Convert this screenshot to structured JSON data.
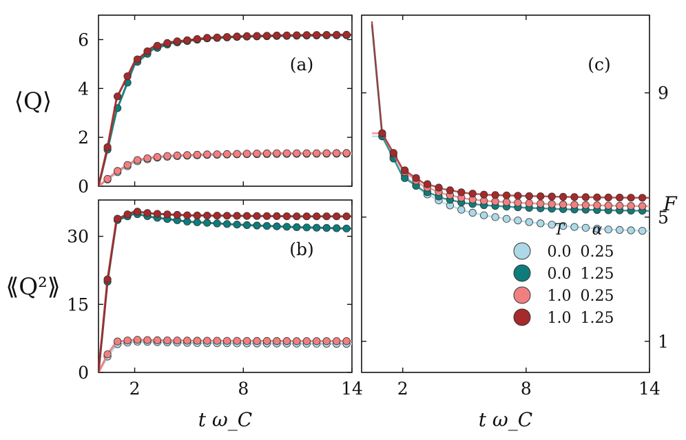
{
  "chart_data": [
    {
      "panel": "(a)",
      "type": "line",
      "ylabel": "⟨Q⟩",
      "xlabel": "",
      "xlim": [
        0,
        14
      ],
      "ylim": [
        0,
        7
      ],
      "xticks": [
        "2",
        "8",
        "14"
      ],
      "yticks": [
        "0",
        "2",
        "4",
        "6"
      ],
      "series": [
        {
          "name": "T=0.0 α=0.25",
          "color": "#add8e6",
          "points": [
            [
              0,
              0
            ],
            [
              1,
              0.55
            ],
            [
              2,
              1.0
            ],
            [
              3,
              1.15
            ],
            [
              4,
              1.22
            ],
            [
              6,
              1.28
            ],
            [
              8,
              1.31
            ],
            [
              10,
              1.32
            ],
            [
              12,
              1.33
            ],
            [
              14,
              1.33
            ]
          ]
        },
        {
          "name": "T=0.0 α=1.25",
          "color": "#0e7c7b",
          "points": [
            [
              0,
              0
            ],
            [
              0.5,
              1.5
            ],
            [
              1,
              3.1
            ],
            [
              2,
              5.0
            ],
            [
              3,
              5.6
            ],
            [
              4,
              5.85
            ],
            [
              6,
              6.05
            ],
            [
              8,
              6.12
            ],
            [
              10,
              6.15
            ],
            [
              12,
              6.17
            ],
            [
              14,
              6.18
            ]
          ]
        },
        {
          "name": "T=1.0 α=0.25",
          "color": "#f08080",
          "points": [
            [
              0,
              0
            ],
            [
              1,
              0.6
            ],
            [
              2,
              1.05
            ],
            [
              3,
              1.18
            ],
            [
              4,
              1.25
            ],
            [
              6,
              1.3
            ],
            [
              8,
              1.33
            ],
            [
              10,
              1.35
            ],
            [
              12,
              1.35
            ],
            [
              14,
              1.36
            ]
          ]
        },
        {
          "name": "T=1.0 α=1.25",
          "color": "#a52a2a",
          "points": [
            [
              0,
              0
            ],
            [
              0.5,
              1.6
            ],
            [
              1,
              3.6
            ],
            [
              2,
              5.1
            ],
            [
              3,
              5.7
            ],
            [
              4,
              5.9
            ],
            [
              6,
              6.07
            ],
            [
              8,
              6.14
            ],
            [
              10,
              6.17
            ],
            [
              12,
              6.19
            ],
            [
              14,
              6.2
            ]
          ]
        }
      ]
    },
    {
      "panel": "(b)",
      "type": "line",
      "ylabel": "⟪Q²⟫",
      "xlabel": "t ω_C",
      "xlim": [
        0,
        14
      ],
      "ylim": [
        0,
        38
      ],
      "xticks": [
        "2",
        "8",
        "14"
      ],
      "yticks": [
        "0",
        "15",
        "30"
      ],
      "series": [
        {
          "name": "T=0.0 α=0.25",
          "color": "#add8e6",
          "points": [
            [
              0,
              0
            ],
            [
              0.5,
              3.5
            ],
            [
              1,
              6.2
            ],
            [
              2,
              6.8
            ],
            [
              3,
              6.7
            ],
            [
              5,
              6.5
            ],
            [
              8,
              6.4
            ],
            [
              11,
              6.35
            ],
            [
              14,
              6.3
            ]
          ]
        },
        {
          "name": "T=0.0 α=1.25",
          "color": "#0e7c7b",
          "points": [
            [
              0,
              0
            ],
            [
              0.5,
              20
            ],
            [
              1,
              33.5
            ],
            [
              2,
              35
            ],
            [
              3,
              34.2
            ],
            [
              5,
              33.2
            ],
            [
              8,
              32.5
            ],
            [
              11,
              32.0
            ],
            [
              14,
              31.7
            ]
          ]
        },
        {
          "name": "T=1.0 α=0.25",
          "color": "#f08080",
          "points": [
            [
              0,
              0
            ],
            [
              0.5,
              4
            ],
            [
              1,
              6.8
            ],
            [
              2,
              7.2
            ],
            [
              3,
              7.1
            ],
            [
              5,
              7.0
            ],
            [
              8,
              6.95
            ],
            [
              11,
              6.9
            ],
            [
              14,
              6.9
            ]
          ]
        },
        {
          "name": "T=1.0 α=1.25",
          "color": "#a52a2a",
          "points": [
            [
              0,
              0
            ],
            [
              0.5,
              20.5
            ],
            [
              1,
              33.8
            ],
            [
              2,
              35.5
            ],
            [
              3,
              35
            ],
            [
              5,
              34.6
            ],
            [
              8,
              34.5
            ],
            [
              11,
              34.4
            ],
            [
              14,
              34.4
            ]
          ]
        }
      ]
    },
    {
      "panel": "(c)",
      "type": "scatter",
      "ylabel": "F",
      "xlabel": "t ω_C",
      "xlim": [
        0,
        14
      ],
      "ylim": [
        0,
        11.5
      ],
      "xticks": [
        "2",
        "8",
        "14"
      ],
      "yticks": [
        "1",
        "5",
        "9"
      ],
      "legend_title_T": "T",
      "legend_title_alpha": "α",
      "legend": [
        {
          "T": "0.0",
          "alpha": "0.25",
          "color": "#add8e6"
        },
        {
          "T": "0.0",
          "alpha": "1.25",
          "color": "#0e7c7b"
        },
        {
          "T": "1.0",
          "alpha": "0.25",
          "color": "#f08080"
        },
        {
          "T": "1.0",
          "alpha": "1.25",
          "color": "#a52a2a"
        }
      ],
      "series": [
        {
          "name": "T=0.0 α=0.25",
          "color": "#add8e6",
          "points": [
            [
              1,
              7.6
            ],
            [
              2,
              6.4
            ],
            [
              3,
              5.8
            ],
            [
              4,
              5.45
            ],
            [
              5,
              5.2
            ],
            [
              6,
              5.05
            ],
            [
              8,
              4.85
            ],
            [
              10,
              4.7
            ],
            [
              12,
              4.6
            ],
            [
              14,
              4.55
            ]
          ]
        },
        {
          "name": "T=0.0 α=1.25",
          "color": "#0e7c7b",
          "points": [
            [
              0.5,
              11.2
            ],
            [
              1,
              7.6
            ],
            [
              2,
              6.3
            ],
            [
              3,
              5.85
            ],
            [
              4,
              5.6
            ],
            [
              5,
              5.45
            ],
            [
              6,
              5.38
            ],
            [
              8,
              5.3
            ],
            [
              10,
              5.25
            ],
            [
              12,
              5.22
            ],
            [
              14,
              5.2
            ]
          ]
        },
        {
          "name": "T=1.0 α=0.25",
          "color": "#f08080",
          "points": [
            [
              1,
              7.7
            ],
            [
              2,
              6.5
            ],
            [
              3,
              6.0
            ],
            [
              4,
              5.75
            ],
            [
              5,
              5.6
            ],
            [
              6,
              5.52
            ],
            [
              8,
              5.45
            ],
            [
              10,
              5.4
            ],
            [
              12,
              5.37
            ],
            [
              14,
              5.35
            ]
          ]
        },
        {
          "name": "T=1.0 α=1.25",
          "color": "#a52a2a",
          "points": [
            [
              0.5,
              11.3
            ],
            [
              1,
              7.7
            ],
            [
              2,
              6.55
            ],
            [
              3,
              6.1
            ],
            [
              4,
              5.9
            ],
            [
              5,
              5.78
            ],
            [
              6,
              5.72
            ],
            [
              8,
              5.68
            ],
            [
              10,
              5.65
            ],
            [
              12,
              5.63
            ],
            [
              14,
              5.62
            ]
          ]
        }
      ]
    }
  ]
}
